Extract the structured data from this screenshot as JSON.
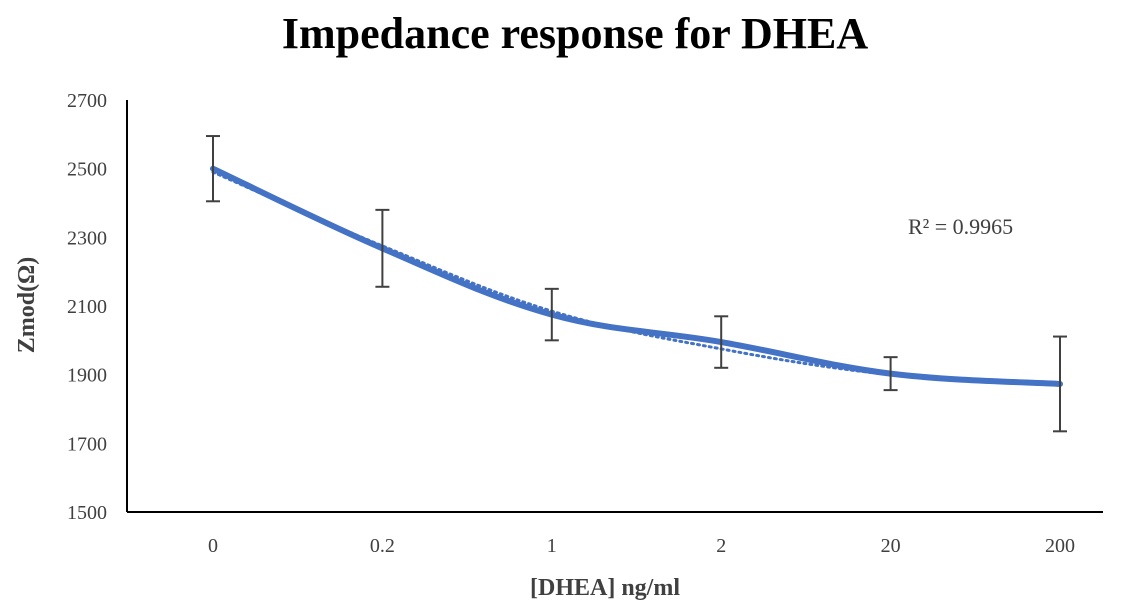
{
  "chart_data": {
    "type": "line",
    "title": "Impedance response for DHEA",
    "xlabel": "[DHEA] ng/ml",
    "ylabel": "Zmod(Ω)",
    "categories": [
      "0",
      "0.2",
      "1",
      "2",
      "20",
      "200"
    ],
    "series": [
      {
        "values": [
          2500,
          2268,
          2075,
          1995,
          1903,
          1873
        ],
        "error": [
          95,
          112,
          75,
          75,
          48,
          138
        ],
        "color": "#4472C4"
      }
    ],
    "trendline": {
      "style": "dotted",
      "color": "#4472C4",
      "values": [
        2490,
        2275,
        2085,
        1975,
        1900,
        1870
      ],
      "label": "R² = 0.9965"
    },
    "ylim": [
      1500,
      2700
    ],
    "yticks": [
      1500,
      1700,
      1900,
      2100,
      2300,
      2500,
      2700
    ],
    "grid": false,
    "legend": "none",
    "colors": {
      "line": "#4472C4",
      "error_bars": "#404040",
      "axis": "#000000",
      "text": "#404040",
      "title": "#000000"
    }
  }
}
